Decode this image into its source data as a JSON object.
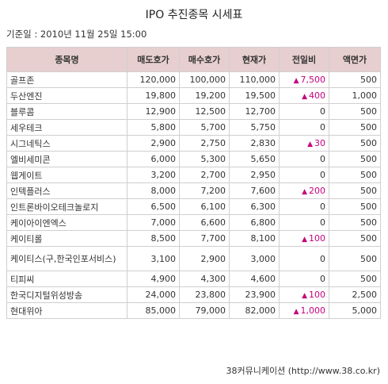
{
  "title": "IPO 추진종목 시세표",
  "base_date": "기준일 : 2010년 11월 25일 15:00",
  "colors": {
    "header_bg": "#e7cfcf",
    "up": "#c6007e"
  },
  "table": {
    "headers": [
      "종목명",
      "매도호가",
      "매수호가",
      "현재가",
      "전일비",
      "액면가"
    ],
    "rows": [
      {
        "name": "골프존",
        "ask": "120,000",
        "bid": "100,000",
        "price": "110,000",
        "change": "7,500",
        "up": true,
        "par": "500"
      },
      {
        "name": "두산엔진",
        "ask": "19,800",
        "bid": "19,200",
        "price": "19,500",
        "change": "400",
        "up": true,
        "par": "1,000"
      },
      {
        "name": "블루콤",
        "ask": "12,900",
        "bid": "12,500",
        "price": "12,700",
        "change": "0",
        "up": false,
        "par": "500"
      },
      {
        "name": "세우테크",
        "ask": "5,800",
        "bid": "5,700",
        "price": "5,750",
        "change": "0",
        "up": false,
        "par": "500"
      },
      {
        "name": "시그네틱스",
        "ask": "2,900",
        "bid": "2,750",
        "price": "2,830",
        "change": "30",
        "up": true,
        "par": "500"
      },
      {
        "name": "엘비세미콘",
        "ask": "6,000",
        "bid": "5,300",
        "price": "5,650",
        "change": "0",
        "up": false,
        "par": "500"
      },
      {
        "name": "웹게이트",
        "ask": "3,200",
        "bid": "2,700",
        "price": "2,950",
        "change": "0",
        "up": false,
        "par": "500"
      },
      {
        "name": "인텍플러스",
        "ask": "8,000",
        "bid": "7,200",
        "price": "7,600",
        "change": "200",
        "up": true,
        "par": "500"
      },
      {
        "name": "인트론바이오테크놀로지",
        "ask": "6,500",
        "bid": "6,100",
        "price": "6,300",
        "change": "0",
        "up": false,
        "par": "500"
      },
      {
        "name": "케이아이엔엑스",
        "ask": "7,000",
        "bid": "6,600",
        "price": "6,800",
        "change": "0",
        "up": false,
        "par": "500"
      },
      {
        "name": "케이티롤",
        "ask": "8,500",
        "bid": "7,700",
        "price": "8,100",
        "change": "100",
        "up": true,
        "par": "500"
      },
      {
        "name": "케이티스(구,한국인포서비스)",
        "ask": "3,100",
        "bid": "2,900",
        "price": "3,000",
        "change": "0",
        "up": false,
        "par": "500",
        "tall": true
      },
      {
        "name": "티피씨",
        "ask": "4,900",
        "bid": "4,300",
        "price": "4,600",
        "change": "0",
        "up": false,
        "par": "500"
      },
      {
        "name": "한국디지털위성방송",
        "ask": "24,000",
        "bid": "23,800",
        "price": "23,900",
        "change": "100",
        "up": true,
        "par": "2,500"
      },
      {
        "name": "현대위아",
        "ask": "85,000",
        "bid": "79,000",
        "price": "82,000",
        "change": "1,000",
        "up": true,
        "par": "5,000"
      }
    ]
  },
  "footer": "38커뮤니케이션 (http://www.38.co.kr)"
}
